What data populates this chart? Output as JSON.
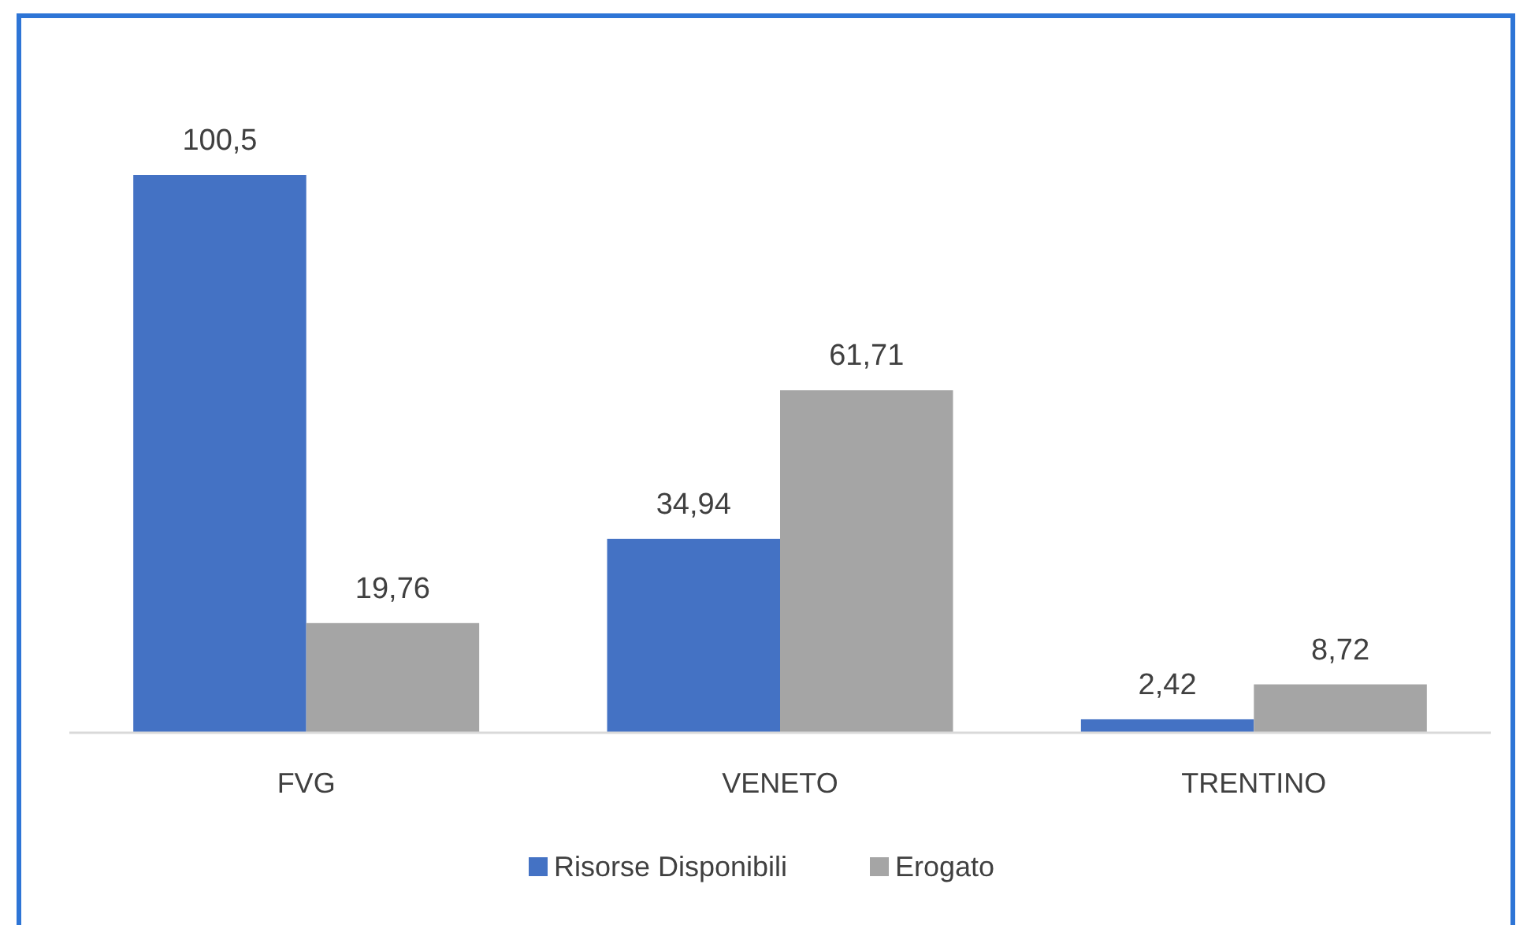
{
  "chart_data": {
    "type": "bar",
    "categories": [
      "FVG",
      "VENETO",
      "TRENTINO"
    ],
    "series": [
      {
        "name": "Risorse Disponibili",
        "color": "#4472c4",
        "values": [
          100.5,
          34.94,
          2.42
        ],
        "value_labels": [
          "100,5",
          "34,94",
          "2,42"
        ]
      },
      {
        "name": "Erogato",
        "color": "#a5a5a5",
        "values": [
          19.76,
          61.71,
          8.72
        ],
        "value_labels": [
          "19,76",
          "61,71",
          "8,72"
        ]
      }
    ],
    "legend": "bottom",
    "grid": false
  }
}
